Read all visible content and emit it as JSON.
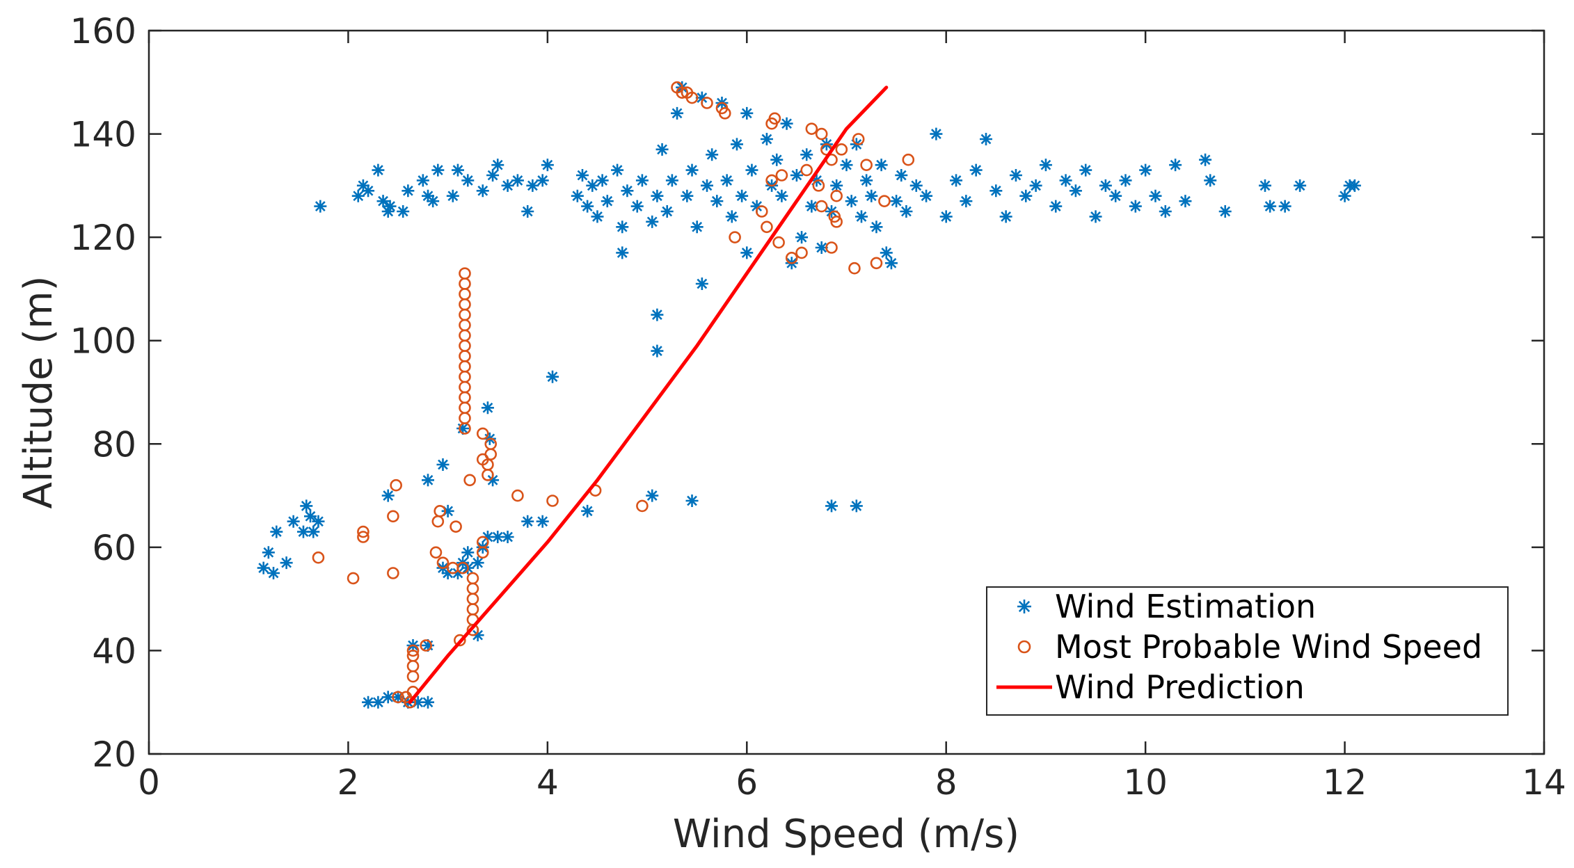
{
  "chart_data": {
    "type": "scatter",
    "title": "",
    "xlabel": "Wind Speed (m/s)",
    "ylabel": "Altitude (m)",
    "xlim": [
      0,
      14
    ],
    "ylim": [
      20,
      160
    ],
    "xticks": [
      0,
      2,
      4,
      6,
      8,
      10,
      12,
      14
    ],
    "yticks": [
      20,
      40,
      60,
      80,
      100,
      120,
      140,
      160
    ],
    "grid": false,
    "legend_position": "bottom-right",
    "colors": {
      "estimation": "#0072BD",
      "probable": "#D95319",
      "prediction": "#FF0000",
      "axis": "#262626"
    },
    "series": [
      {
        "name": "Wind Estimation",
        "marker": "asterisk",
        "points": [
          [
            1.15,
            56
          ],
          [
            1.2,
            59
          ],
          [
            1.25,
            55
          ],
          [
            1.28,
            63
          ],
          [
            1.38,
            57
          ],
          [
            1.45,
            65
          ],
          [
            1.55,
            63
          ],
          [
            1.58,
            68
          ],
          [
            1.62,
            66
          ],
          [
            1.65,
            63
          ],
          [
            1.7,
            65
          ],
          [
            1.72,
            126
          ],
          [
            2.1,
            128
          ],
          [
            2.15,
            130
          ],
          [
            2.2,
            129
          ],
          [
            2.3,
            133
          ],
          [
            2.35,
            127
          ],
          [
            2.4,
            125
          ],
          [
            2.42,
            126
          ],
          [
            2.55,
            125
          ],
          [
            2.6,
            129
          ],
          [
            2.75,
            131
          ],
          [
            2.8,
            128
          ],
          [
            2.85,
            127
          ],
          [
            2.9,
            133
          ],
          [
            3.05,
            128
          ],
          [
            3.1,
            133
          ],
          [
            3.2,
            131
          ],
          [
            3.35,
            129
          ],
          [
            3.45,
            132
          ],
          [
            3.5,
            134
          ],
          [
            3.6,
            130
          ],
          [
            3.7,
            131
          ],
          [
            3.8,
            125
          ],
          [
            3.85,
            130
          ],
          [
            3.95,
            131
          ],
          [
            4.0,
            134
          ],
          [
            2.2,
            30
          ],
          [
            2.3,
            30
          ],
          [
            2.4,
            31
          ],
          [
            2.5,
            31
          ],
          [
            2.6,
            30
          ],
          [
            2.65,
            41
          ],
          [
            2.7,
            30
          ],
          [
            2.8,
            30
          ],
          [
            2.8,
            41
          ],
          [
            2.95,
            56
          ],
          [
            3.0,
            55
          ],
          [
            3.1,
            55
          ],
          [
            3.15,
            57
          ],
          [
            3.2,
            56
          ],
          [
            3.2,
            59
          ],
          [
            3.3,
            43
          ],
          [
            3.3,
            57
          ],
          [
            3.35,
            60
          ],
          [
            3.4,
            62
          ],
          [
            3.4,
            87
          ],
          [
            3.42,
            81
          ],
          [
            3.45,
            73
          ],
          [
            3.5,
            62
          ],
          [
            3.6,
            62
          ],
          [
            3.8,
            65
          ],
          [
            3.95,
            65
          ],
          [
            2.95,
            76
          ],
          [
            3.0,
            67
          ],
          [
            2.4,
            70
          ],
          [
            2.8,
            73
          ],
          [
            3.15,
            83
          ],
          [
            4.05,
            93
          ],
          [
            4.4,
            67
          ],
          [
            5.05,
            70
          ],
          [
            5.45,
            69
          ],
          [
            5.1,
            105
          ],
          [
            5.1,
            98
          ],
          [
            5.55,
            111
          ],
          [
            4.75,
            117
          ],
          [
            6.0,
            117
          ],
          [
            4.3,
            128
          ],
          [
            4.35,
            132
          ],
          [
            4.4,
            126
          ],
          [
            4.45,
            130
          ],
          [
            4.5,
            124
          ],
          [
            4.55,
            131
          ],
          [
            4.6,
            127
          ],
          [
            4.7,
            133
          ],
          [
            4.75,
            122
          ],
          [
            4.8,
            129
          ],
          [
            4.9,
            126
          ],
          [
            4.95,
            131
          ],
          [
            5.05,
            123
          ],
          [
            5.1,
            128
          ],
          [
            5.15,
            137
          ],
          [
            5.2,
            125
          ],
          [
            5.25,
            131
          ],
          [
            5.3,
            144
          ],
          [
            5.35,
            149
          ],
          [
            5.4,
            128
          ],
          [
            5.45,
            133
          ],
          [
            5.5,
            122
          ],
          [
            5.55,
            147
          ],
          [
            5.6,
            130
          ],
          [
            5.65,
            136
          ],
          [
            5.7,
            127
          ],
          [
            5.75,
            146
          ],
          [
            5.8,
            131
          ],
          [
            5.85,
            124
          ],
          [
            5.9,
            138
          ],
          [
            5.95,
            128
          ],
          [
            6.0,
            144
          ],
          [
            6.05,
            133
          ],
          [
            6.1,
            126
          ],
          [
            6.2,
            139
          ],
          [
            6.25,
            130
          ],
          [
            6.3,
            135
          ],
          [
            6.35,
            128
          ],
          [
            6.4,
            142
          ],
          [
            6.45,
            115
          ],
          [
            6.5,
            132
          ],
          [
            6.55,
            120
          ],
          [
            6.6,
            136
          ],
          [
            6.65,
            126
          ],
          [
            6.7,
            131
          ],
          [
            6.75,
            118
          ],
          [
            6.8,
            138
          ],
          [
            6.85,
            125
          ],
          [
            6.9,
            130
          ],
          [
            7.0,
            134
          ],
          [
            7.05,
            127
          ],
          [
            7.1,
            138
          ],
          [
            7.15,
            124
          ],
          [
            7.2,
            131
          ],
          [
            7.25,
            128
          ],
          [
            7.3,
            122
          ],
          [
            7.35,
            134
          ],
          [
            7.4,
            117
          ],
          [
            7.45,
            115
          ],
          [
            7.5,
            127
          ],
          [
            7.55,
            132
          ],
          [
            7.6,
            125
          ],
          [
            7.7,
            130
          ],
          [
            7.8,
            128
          ],
          [
            7.9,
            140
          ],
          [
            8.0,
            124
          ],
          [
            8.1,
            131
          ],
          [
            8.2,
            127
          ],
          [
            8.3,
            133
          ],
          [
            8.4,
            139
          ],
          [
            8.5,
            129
          ],
          [
            8.6,
            124
          ],
          [
            8.7,
            132
          ],
          [
            8.8,
            128
          ],
          [
            8.9,
            130
          ],
          [
            9.0,
            134
          ],
          [
            9.1,
            126
          ],
          [
            9.2,
            131
          ],
          [
            9.3,
            129
          ],
          [
            9.4,
            133
          ],
          [
            9.5,
            124
          ],
          [
            9.6,
            130
          ],
          [
            9.7,
            128
          ],
          [
            9.8,
            131
          ],
          [
            9.9,
            126
          ],
          [
            10.0,
            133
          ],
          [
            10.1,
            128
          ],
          [
            10.2,
            125
          ],
          [
            10.3,
            134
          ],
          [
            10.4,
            127
          ],
          [
            10.6,
            135
          ],
          [
            10.65,
            131
          ],
          [
            10.8,
            125
          ],
          [
            11.2,
            130
          ],
          [
            11.25,
            126
          ],
          [
            11.4,
            126
          ],
          [
            11.55,
            130
          ],
          [
            12.0,
            128
          ],
          [
            12.05,
            130
          ],
          [
            12.1,
            130
          ],
          [
            6.85,
            68
          ],
          [
            7.1,
            68
          ]
        ]
      },
      {
        "name": "Most Probable Wind Speed",
        "marker": "circle",
        "points": [
          [
            1.7,
            58
          ],
          [
            2.05,
            54
          ],
          [
            2.15,
            62
          ],
          [
            2.15,
            63
          ],
          [
            2.45,
            55
          ],
          [
            2.45,
            66
          ],
          [
            2.48,
            72
          ],
          [
            2.5,
            31
          ],
          [
            2.58,
            31
          ],
          [
            2.62,
            30
          ],
          [
            2.65,
            32
          ],
          [
            2.65,
            35
          ],
          [
            2.65,
            37
          ],
          [
            2.65,
            39
          ],
          [
            2.65,
            40
          ],
          [
            2.78,
            41
          ],
          [
            2.88,
            59
          ],
          [
            2.9,
            65
          ],
          [
            2.92,
            67
          ],
          [
            2.95,
            57
          ],
          [
            3.05,
            56
          ],
          [
            3.08,
            64
          ],
          [
            3.12,
            42
          ],
          [
            3.15,
            56
          ],
          [
            3.22,
            73
          ],
          [
            3.17,
            83
          ],
          [
            3.17,
            85
          ],
          [
            3.17,
            87
          ],
          [
            3.17,
            89
          ],
          [
            3.17,
            91
          ],
          [
            3.17,
            93
          ],
          [
            3.17,
            95
          ],
          [
            3.17,
            97
          ],
          [
            3.17,
            99
          ],
          [
            3.17,
            101
          ],
          [
            3.17,
            103
          ],
          [
            3.17,
            105
          ],
          [
            3.17,
            107
          ],
          [
            3.17,
            109
          ],
          [
            3.17,
            111
          ],
          [
            3.17,
            113
          ],
          [
            3.25,
            44
          ],
          [
            3.25,
            46
          ],
          [
            3.25,
            48
          ],
          [
            3.25,
            50
          ],
          [
            3.25,
            52
          ],
          [
            3.25,
            54
          ],
          [
            3.35,
            59
          ],
          [
            3.35,
            61
          ],
          [
            3.35,
            77
          ],
          [
            3.35,
            82
          ],
          [
            3.4,
            74
          ],
          [
            3.4,
            76
          ],
          [
            3.43,
            78
          ],
          [
            3.43,
            80
          ],
          [
            3.7,
            70
          ],
          [
            4.05,
            69
          ],
          [
            4.48,
            71
          ],
          [
            4.95,
            68
          ],
          [
            5.3,
            149
          ],
          [
            5.35,
            148
          ],
          [
            5.4,
            148
          ],
          [
            5.45,
            147
          ],
          [
            5.6,
            146
          ],
          [
            5.75,
            145
          ],
          [
            5.78,
            144
          ],
          [
            5.88,
            120
          ],
          [
            6.15,
            125
          ],
          [
            6.2,
            122
          ],
          [
            6.25,
            131
          ],
          [
            6.25,
            142
          ],
          [
            6.28,
            143
          ],
          [
            6.32,
            119
          ],
          [
            6.35,
            132
          ],
          [
            6.45,
            116
          ],
          [
            6.55,
            117
          ],
          [
            6.6,
            133
          ],
          [
            6.65,
            141
          ],
          [
            6.72,
            130
          ],
          [
            6.75,
            140
          ],
          [
            6.75,
            126
          ],
          [
            6.8,
            137
          ],
          [
            6.85,
            118
          ],
          [
            6.85,
            135
          ],
          [
            6.88,
            124
          ],
          [
            6.9,
            123
          ],
          [
            6.9,
            128
          ],
          [
            6.95,
            137
          ],
          [
            7.08,
            114
          ],
          [
            7.12,
            139
          ],
          [
            7.2,
            134
          ],
          [
            7.3,
            115
          ],
          [
            7.38,
            127
          ],
          [
            7.62,
            135
          ]
        ]
      },
      {
        "name": "Wind Prediction",
        "marker": "line",
        "points": [
          [
            2.62,
            30
          ],
          [
            3.0,
            39
          ],
          [
            3.5,
            50
          ],
          [
            4.0,
            61
          ],
          [
            4.5,
            73
          ],
          [
            5.0,
            86
          ],
          [
            5.5,
            99
          ],
          [
            6.0,
            113
          ],
          [
            6.5,
            127
          ],
          [
            7.0,
            141
          ],
          [
            7.4,
            149
          ]
        ]
      }
    ],
    "legend": [
      {
        "label": "Wind Estimation",
        "marker": "asterisk"
      },
      {
        "label": "Most Probable Wind Speed",
        "marker": "circle"
      },
      {
        "label": "Wind Prediction",
        "marker": "line"
      }
    ]
  }
}
